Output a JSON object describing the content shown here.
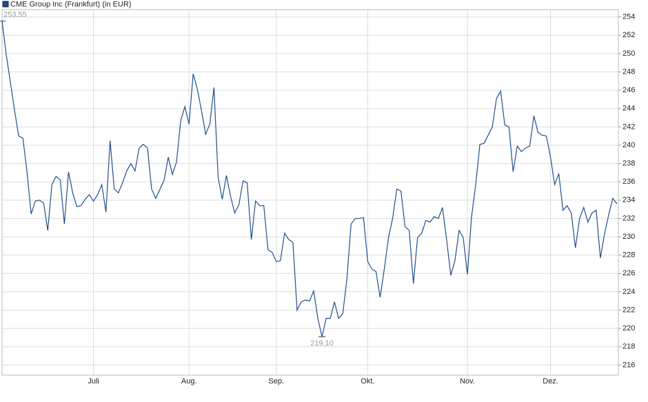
{
  "chart_data": {
    "type": "line",
    "categories": [
      null,
      null,
      null,
      null,
      null,
      null,
      null,
      null,
      null,
      null,
      null,
      null,
      null,
      null,
      null,
      null,
      null,
      null,
      null,
      null,
      null,
      null,
      "Juli",
      null,
      null,
      null,
      null,
      null,
      null,
      null,
      null,
      null,
      null,
      null,
      null,
      null,
      null,
      null,
      null,
      null,
      null,
      null,
      null,
      null,
      null,
      "Aug.",
      null,
      null,
      null,
      null,
      null,
      null,
      null,
      null,
      null,
      null,
      null,
      null,
      null,
      null,
      null,
      null,
      null,
      null,
      null,
      null,
      "Sep.",
      null,
      null,
      null,
      null,
      null,
      null,
      null,
      null,
      null,
      null,
      null,
      null,
      null,
      null,
      null,
      null,
      null,
      null,
      null,
      null,
      null,
      "Okt.",
      null,
      null,
      null,
      null,
      null,
      null,
      null,
      null,
      null,
      null,
      null,
      null,
      null,
      null,
      null,
      null,
      null,
      null,
      null,
      null,
      null,
      null,
      null,
      "Nov.",
      null,
      null,
      null,
      null,
      null,
      null,
      null,
      null,
      null,
      null,
      null,
      null,
      null,
      null,
      null,
      null,
      null,
      null,
      null,
      "Dez.",
      null,
      null,
      null,
      null,
      null,
      null,
      null,
      null,
      null,
      null,
      null,
      null,
      null,
      null,
      null,
      null
    ],
    "series": [
      {
        "name": "CME Group Inc (Frankfurt) (in EUR)",
        "color": "#1f4e8c",
        "values": [
          253.55,
          249.9,
          246.9,
          243.8,
          241.0,
          240.8,
          237.1,
          232.5,
          233.9,
          234.0,
          233.7,
          230.7,
          235.7,
          236.6,
          236.2,
          231.4,
          237.1,
          234.8,
          233.3,
          233.4,
          234.1,
          234.6,
          233.9,
          234.6,
          235.7,
          232.7,
          240.5,
          235.2,
          234.8,
          235.9,
          237.2,
          238.0,
          237.2,
          239.7,
          240.1,
          239.7,
          235.2,
          234.2,
          235.2,
          236.2,
          238.7,
          236.8,
          238.2,
          242.7,
          244.2,
          242.3,
          247.8,
          246.1,
          243.8,
          241.2,
          242.3,
          246.3,
          236.5,
          234.1,
          236.7,
          234.4,
          232.6,
          233.5,
          236.1,
          235.9,
          229.7,
          233.9,
          233.4,
          233.4,
          228.6,
          228.3,
          227.3,
          227.4,
          230.4,
          229.7,
          229.4,
          222.0,
          222.9,
          223.1,
          223.0,
          224.1,
          221.1,
          219.1,
          221.1,
          221.1,
          222.9,
          221.1,
          221.6,
          225.4,
          231.4,
          232.0,
          232.0,
          232.1,
          227.3,
          226.5,
          226.2,
          223.4,
          226.5,
          229.9,
          232.0,
          235.2,
          235.0,
          231.1,
          230.7,
          224.9,
          229.9,
          230.4,
          231.8,
          231.6,
          232.2,
          232.0,
          233.2,
          229.7,
          225.8,
          227.4,
          230.7,
          229.9,
          225.9,
          232.2,
          235.7,
          240.1,
          240.2,
          241.1,
          242.0,
          245.1,
          245.9,
          242.2,
          242.0,
          237.1,
          239.9,
          239.3,
          239.7,
          239.9,
          243.2,
          241.4,
          241.1,
          241.0,
          238.7,
          235.7,
          236.9,
          232.9,
          233.4,
          232.6,
          228.8,
          232.0,
          233.2,
          231.6,
          232.6,
          232.9,
          227.7,
          230.3,
          232.4,
          234.2,
          233.6
        ],
        "value_labels": [
          "253,55",
          null,
          null,
          null,
          null,
          null,
          null,
          null,
          null,
          null,
          null,
          null,
          null,
          null,
          null,
          null,
          null,
          null,
          null,
          null,
          null,
          null,
          null,
          null,
          null,
          null,
          null,
          null,
          null,
          null,
          null,
          null,
          null,
          null,
          null,
          null,
          null,
          null,
          null,
          null,
          null,
          null,
          null,
          null,
          null,
          null,
          null,
          null,
          null,
          null,
          null,
          null,
          null,
          null,
          null,
          null,
          null,
          null,
          null,
          null,
          null,
          null,
          null,
          null,
          null,
          null,
          null,
          null,
          null,
          null,
          null,
          null,
          null,
          null,
          null,
          null,
          null,
          "219,10",
          null,
          null,
          null,
          null,
          null,
          null,
          null,
          null,
          null,
          null,
          null,
          null,
          null,
          null,
          null,
          null,
          null,
          null,
          null,
          null,
          null,
          null,
          null,
          null,
          null,
          null,
          null,
          null,
          null,
          null,
          null,
          null,
          null,
          null,
          null,
          null,
          null,
          null,
          null,
          null,
          null,
          null,
          null,
          null,
          null,
          null,
          null,
          null,
          null,
          null,
          null,
          null,
          null,
          null,
          null,
          null,
          null,
          null,
          null,
          null,
          null,
          null,
          null,
          null,
          null,
          null,
          null,
          null,
          null
        ]
      }
    ],
    "ylim": [
      214.9,
      254.8
    ],
    "yticks": [
      216,
      218,
      220,
      222,
      224,
      226,
      228,
      230,
      232,
      234,
      236,
      238,
      240,
      242,
      244,
      246,
      248,
      250,
      252,
      254
    ],
    "grid": true
  }
}
